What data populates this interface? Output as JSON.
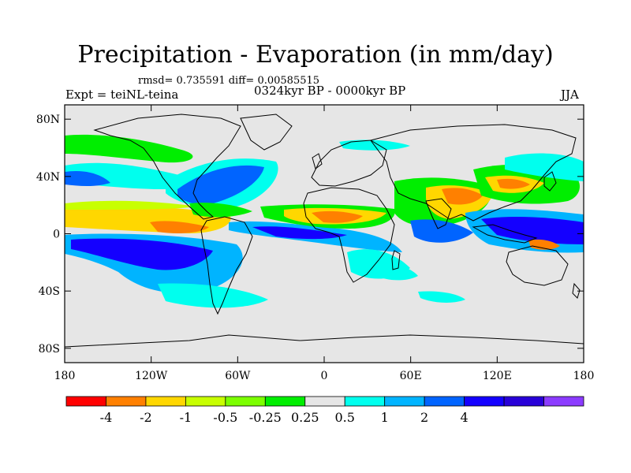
{
  "header": {
    "title": "Precipitation - Evaporation (in mm/day)",
    "stats": "rmsd= 0.735591 diff= 0.00585515",
    "experiment": "Expt = teiNL-teina",
    "period": "0324kyr BP - 0000kyr BP",
    "season": "JJA"
  },
  "map": {
    "lat_ticks": [
      "80N",
      "40N",
      "0",
      "40S",
      "80S"
    ],
    "lon_ticks": [
      "180",
      "120W",
      "60W",
      "0",
      "60E",
      "120E",
      "180"
    ],
    "lat_values": [
      80,
      40,
      0,
      -40,
      -80
    ],
    "lon_values": [
      -180,
      -120,
      -60,
      0,
      60,
      120,
      180
    ],
    "lat_range": [
      -90,
      90
    ],
    "lon_range": [
      -180,
      180
    ],
    "background_color": "#e6e6e6"
  },
  "colorbar": {
    "colors": [
      "#ff0000",
      "#ff8000",
      "#ffd700",
      "#c8ff00",
      "#7cff00",
      "#00ee00",
      "#e6e6e6",
      "#00ffee",
      "#00b4ff",
      "#0064ff",
      "#1400ff",
      "#2800d8",
      "#8c3cff"
    ],
    "labels": [
      "-4",
      "-2",
      "-1",
      "-0.5",
      "-0.25",
      "0.25",
      "0.5",
      "1",
      "2",
      "4"
    ],
    "label_boundaries": [
      1,
      2,
      3,
      4,
      5,
      6,
      7,
      8,
      9,
      10
    ]
  },
  "regions": [
    {
      "name": "north-atlantic-wet",
      "color": "#0064ff"
    },
    {
      "name": "west-africa-dry",
      "color": "#ff8000"
    },
    {
      "name": "south-pacific-wet",
      "color": "#1400ff"
    },
    {
      "name": "western-pacific-wet",
      "color": "#1400ff"
    },
    {
      "name": "asia-dry",
      "color": "#ff8000"
    }
  ]
}
